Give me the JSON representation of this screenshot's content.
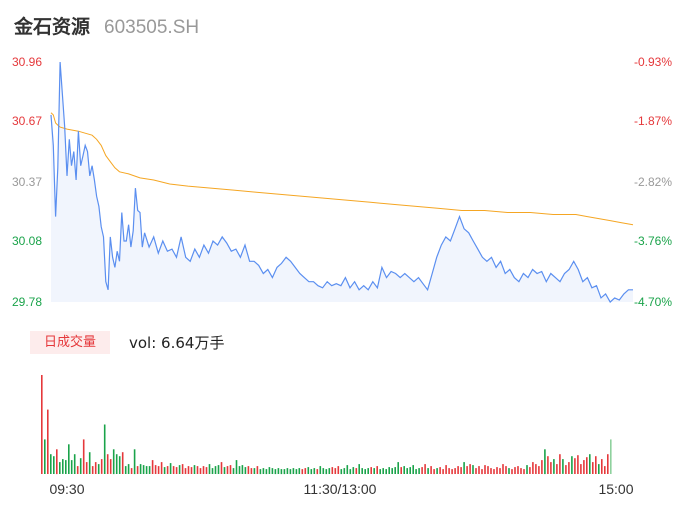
{
  "header": {
    "name": "金石资源",
    "code": "603505.SH"
  },
  "colors": {
    "up": "#e5383b",
    "down": "#1aa34a",
    "price_line": "#5b8ff0",
    "avg_line": "#f5a623",
    "flat": "#999999",
    "fill": "#f1f5fd"
  },
  "volume_panel": {
    "tab_label": "日成交量",
    "vol_text": "vol: 6.64万手"
  },
  "chart_data": [
    {
      "type": "line",
      "y_tick_labels": [
        "30.96",
        "30.67",
        "30.37",
        "30.08",
        "29.78"
      ],
      "y_tick_values": [
        30.96,
        30.67,
        30.37,
        30.08,
        29.78
      ],
      "pct_tick_labels": [
        "-0.93%",
        "-1.87%",
        "-2.82%",
        "-3.76%",
        "-4.70%"
      ],
      "ylim": [
        29.78,
        30.96
      ],
      "x_tick_labels": [
        "09:30",
        "11:30/13:00",
        "15:00"
      ],
      "price_keypoints": [
        [
          0,
          30.7
        ],
        [
          2,
          30.55
        ],
        [
          4,
          30.2
        ],
        [
          6,
          30.44
        ],
        [
          8,
          30.96
        ],
        [
          10,
          30.8
        ],
        [
          12,
          30.64
        ],
        [
          14,
          30.4
        ],
        [
          16,
          30.58
        ],
        [
          18,
          30.45
        ],
        [
          20,
          30.52
        ],
        [
          22,
          30.38
        ],
        [
          24,
          30.62
        ],
        [
          26,
          30.45
        ],
        [
          28,
          30.5
        ],
        [
          30,
          30.55
        ],
        [
          32,
          30.52
        ],
        [
          34,
          30.4
        ],
        [
          36,
          30.45
        ],
        [
          38,
          30.38
        ],
        [
          40,
          30.3
        ],
        [
          42,
          30.25
        ],
        [
          44,
          30.15
        ],
        [
          46,
          30.1
        ],
        [
          48,
          29.88
        ],
        [
          50,
          29.84
        ],
        [
          52,
          30.1
        ],
        [
          54,
          30.0
        ],
        [
          56,
          29.95
        ],
        [
          58,
          30.03
        ],
        [
          60,
          29.98
        ],
        [
          62,
          30.22
        ],
        [
          64,
          30.08
        ],
        [
          66,
          30.08
        ],
        [
          68,
          30.16
        ],
        [
          70,
          30.05
        ],
        [
          72,
          30.13
        ],
        [
          74,
          30.34
        ],
        [
          76,
          30.23
        ],
        [
          78,
          30.22
        ],
        [
          80,
          30.05
        ],
        [
          82,
          30.12
        ],
        [
          86,
          30.05
        ],
        [
          90,
          30.1
        ],
        [
          94,
          30.02
        ],
        [
          98,
          30.08
        ],
        [
          102,
          30.03
        ],
        [
          106,
          30.04
        ],
        [
          110,
          30.0
        ],
        [
          114,
          30.1
        ],
        [
          118,
          30.0
        ],
        [
          122,
          29.98
        ],
        [
          126,
          30.04
        ],
        [
          130,
          30.0
        ],
        [
          134,
          30.06
        ],
        [
          138,
          30.02
        ],
        [
          142,
          30.08
        ],
        [
          146,
          30.06
        ],
        [
          150,
          30.1
        ],
        [
          154,
          30.07
        ],
        [
          158,
          30.03
        ],
        [
          162,
          30.04
        ],
        [
          166,
          30.0
        ],
        [
          170,
          30.06
        ],
        [
          174,
          29.98
        ],
        [
          178,
          29.98
        ],
        [
          182,
          29.96
        ],
        [
          186,
          29.92
        ],
        [
          190,
          29.94
        ],
        [
          194,
          29.9
        ],
        [
          198,
          29.95
        ],
        [
          202,
          29.97
        ],
        [
          206,
          30.0
        ],
        [
          210,
          29.98
        ],
        [
          214,
          29.95
        ],
        [
          218,
          29.92
        ],
        [
          222,
          29.9
        ],
        [
          226,
          29.88
        ],
        [
          230,
          29.88
        ],
        [
          234,
          29.86
        ],
        [
          238,
          29.85
        ],
        [
          242,
          29.88
        ],
        [
          246,
          29.86
        ],
        [
          250,
          29.87
        ],
        [
          254,
          29.86
        ],
        [
          258,
          29.9
        ],
        [
          262,
          29.85
        ],
        [
          266,
          29.88
        ],
        [
          270,
          29.84
        ],
        [
          274,
          29.86
        ],
        [
          278,
          29.84
        ],
        [
          282,
          29.88
        ],
        [
          286,
          29.85
        ],
        [
          290,
          29.95
        ],
        [
          294,
          29.9
        ],
        [
          298,
          29.93
        ],
        [
          302,
          29.92
        ],
        [
          306,
          29.9
        ],
        [
          310,
          29.92
        ],
        [
          314,
          29.9
        ],
        [
          318,
          29.88
        ],
        [
          322,
          29.9
        ],
        [
          326,
          29.87
        ],
        [
          330,
          29.84
        ],
        [
          334,
          29.92
        ],
        [
          338,
          30.0
        ],
        [
          342,
          30.06
        ],
        [
          346,
          30.1
        ],
        [
          350,
          30.08
        ],
        [
          354,
          30.14
        ],
        [
          358,
          30.2
        ],
        [
          362,
          30.14
        ],
        [
          366,
          30.12
        ],
        [
          370,
          30.08
        ],
        [
          374,
          30.04
        ],
        [
          378,
          30.0
        ],
        [
          382,
          29.98
        ],
        [
          386,
          30.0
        ],
        [
          390,
          29.95
        ],
        [
          394,
          29.98
        ],
        [
          398,
          29.92
        ],
        [
          402,
          29.94
        ],
        [
          406,
          29.9
        ],
        [
          410,
          29.88
        ],
        [
          414,
          29.92
        ],
        [
          418,
          29.9
        ],
        [
          422,
          29.94
        ],
        [
          426,
          29.92
        ],
        [
          430,
          29.93
        ],
        [
          434,
          29.88
        ],
        [
          438,
          29.92
        ],
        [
          442,
          29.9
        ],
        [
          446,
          29.88
        ],
        [
          450,
          29.92
        ],
        [
          454,
          29.94
        ],
        [
          458,
          29.98
        ],
        [
          462,
          29.94
        ],
        [
          466,
          29.88
        ],
        [
          470,
          29.9
        ],
        [
          474,
          29.85
        ],
        [
          478,
          29.86
        ],
        [
          482,
          29.8
        ],
        [
          486,
          29.82
        ],
        [
          490,
          29.78
        ],
        [
          494,
          29.8
        ],
        [
          498,
          29.79
        ],
        [
          502,
          29.82
        ],
        [
          506,
          29.84
        ],
        [
          510,
          29.84
        ]
      ],
      "avg_keypoints": [
        [
          0,
          30.71
        ],
        [
          2,
          30.7
        ],
        [
          4,
          30.66
        ],
        [
          6,
          30.65
        ],
        [
          8,
          30.64
        ],
        [
          14,
          30.63
        ],
        [
          24,
          30.62
        ],
        [
          30,
          30.61
        ],
        [
          36,
          30.6
        ],
        [
          40,
          30.58
        ],
        [
          44,
          30.55
        ],
        [
          48,
          30.5
        ],
        [
          52,
          30.47
        ],
        [
          56,
          30.44
        ],
        [
          60,
          30.42
        ],
        [
          68,
          30.41
        ],
        [
          78,
          30.39
        ],
        [
          90,
          30.38
        ],
        [
          104,
          30.36
        ],
        [
          120,
          30.35
        ],
        [
          140,
          30.34
        ],
        [
          160,
          30.33
        ],
        [
          180,
          30.32
        ],
        [
          200,
          30.31
        ],
        [
          220,
          30.3
        ],
        [
          240,
          30.29
        ],
        [
          260,
          30.28
        ],
        [
          280,
          30.27
        ],
        [
          300,
          30.26
        ],
        [
          320,
          30.25
        ],
        [
          340,
          30.24
        ],
        [
          360,
          30.23
        ],
        [
          380,
          30.23
        ],
        [
          400,
          30.22
        ],
        [
          420,
          30.22
        ],
        [
          440,
          30.21
        ],
        [
          460,
          30.21
        ],
        [
          470,
          30.2
        ],
        [
          480,
          30.19
        ],
        [
          490,
          30.18
        ],
        [
          500,
          30.17
        ],
        [
          510,
          30.16
        ]
      ]
    },
    {
      "type": "bar",
      "label": "日成交量",
      "volume_max": 100,
      "volume_values": [
        100,
        35,
        65,
        20,
        18,
        25,
        12,
        15,
        14,
        30,
        14,
        20,
        8,
        16,
        35,
        12,
        22,
        8,
        12,
        10,
        15,
        50,
        20,
        15,
        25,
        20,
        18,
        22,
        8,
        10,
        6,
        25,
        8,
        10,
        9,
        8,
        8,
        14,
        9,
        8,
        12,
        7,
        8,
        11,
        8,
        7,
        9,
        10,
        6,
        8,
        7,
        9,
        8,
        6,
        8,
        7,
        10,
        6,
        8,
        9,
        12,
        7,
        8,
        9,
        6,
        14,
        8,
        9,
        7,
        8,
        6,
        6,
        8,
        5,
        6,
        5,
        7,
        6,
        5,
        6,
        5,
        5,
        6,
        5,
        6,
        5,
        6,
        5,
        6,
        7,
        5,
        6,
        5,
        8,
        6,
        5,
        6,
        7,
        6,
        8,
        5,
        6,
        9,
        5,
        7,
        6,
        10,
        6,
        5,
        6,
        7,
        6,
        8,
        5,
        6,
        5,
        7,
        6,
        7,
        12,
        7,
        8,
        6,
        7,
        9,
        5,
        6,
        7,
        10,
        6,
        8,
        5,
        6,
        7,
        5,
        9,
        6,
        5,
        6,
        8,
        7,
        12,
        8,
        10,
        9,
        6,
        8,
        5,
        9,
        8,
        6,
        5,
        7,
        6,
        10,
        8,
        6,
        5,
        7,
        8,
        6,
        5,
        9,
        7,
        12,
        10,
        8,
        14,
        25,
        18,
        12,
        15,
        10,
        20,
        15,
        9,
        12,
        18,
        16,
        19,
        10,
        14,
        17,
        20,
        12,
        18,
        10,
        15,
        8,
        20,
        35
      ]
    }
  ]
}
